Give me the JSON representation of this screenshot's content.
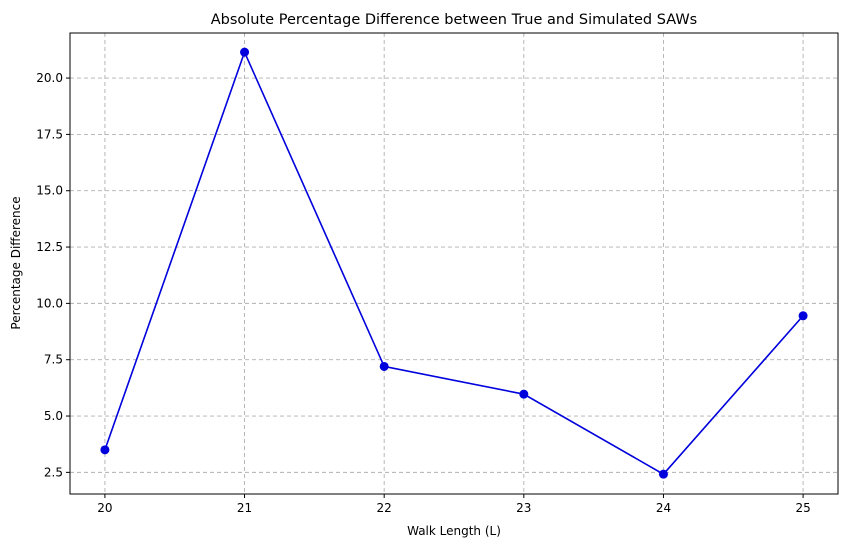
{
  "chart_data": {
    "type": "line",
    "title": "Absolute Percentage Difference between True and Simulated SAWs",
    "xlabel": "Walk Length (L)",
    "ylabel": "Percentage Difference",
    "x": [
      20,
      21,
      22,
      23,
      24,
      25
    ],
    "x_tick_labels": [
      "20",
      "21",
      "22",
      "23",
      "24",
      "25"
    ],
    "y_ticks": [
      2.5,
      5.0,
      7.5,
      10.0,
      12.5,
      15.0,
      17.5,
      20.0
    ],
    "y_tick_labels": [
      "2.5",
      "5.0",
      "7.5",
      "10.0",
      "12.5",
      "15.0",
      "17.5",
      "20.0"
    ],
    "xlim": [
      19.75,
      25.25
    ],
    "ylim": [
      1.54,
      22.0
    ],
    "grid": true,
    "series": [
      {
        "values": [
          3.5,
          21.15,
          7.2,
          5.97,
          2.42,
          9.45
        ],
        "color": "#0000dd",
        "marker": "circle"
      }
    ]
  }
}
